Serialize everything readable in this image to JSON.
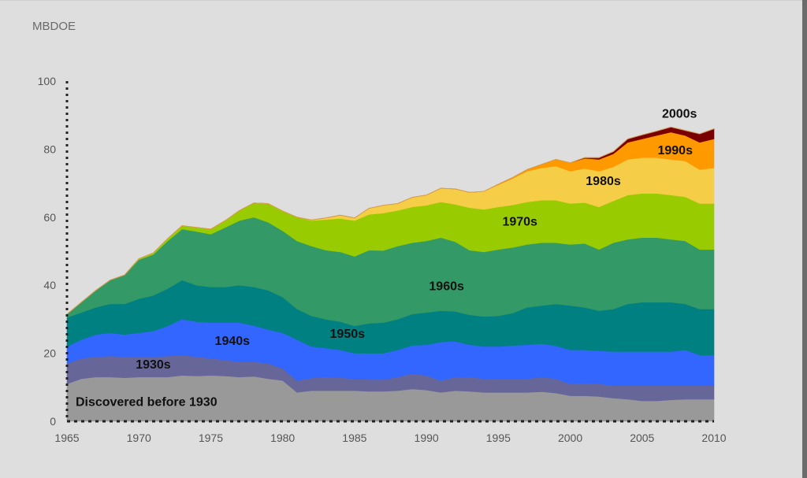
{
  "chart_data": {
    "type": "area",
    "stacked": true,
    "title": "",
    "ylabel": "MBDOE",
    "xlabel": "",
    "xlim": [
      1965,
      2010
    ],
    "ylim": [
      0,
      100
    ],
    "x_ticks": [
      1965,
      1970,
      1975,
      1980,
      1985,
      1990,
      1995,
      2000,
      2005,
      2010
    ],
    "y_ticks": [
      0,
      20,
      40,
      60,
      80,
      100
    ],
    "grid": false,
    "legend": "inline labels",
    "x": [
      1965,
      1966,
      1967,
      1968,
      1969,
      1970,
      1971,
      1972,
      1973,
      1974,
      1975,
      1976,
      1977,
      1978,
      1979,
      1980,
      1981,
      1982,
      1983,
      1984,
      1985,
      1986,
      1987,
      1988,
      1989,
      1990,
      1991,
      1992,
      1993,
      1994,
      1995,
      1996,
      1997,
      1998,
      1999,
      2000,
      2001,
      2002,
      2003,
      2004,
      2005,
      2006,
      2007,
      2008,
      2009,
      2010
    ],
    "series": [
      {
        "name": "Discovered before 1930",
        "color": "#999999",
        "label": "Discovered before 1930",
        "values": [
          11.0,
          12.5,
          13.0,
          13.0,
          12.8,
          13.0,
          13.0,
          13.0,
          13.5,
          13.3,
          13.5,
          13.3,
          13.0,
          13.2,
          12.5,
          12.0,
          8.5,
          9.0,
          9.0,
          9.0,
          9.0,
          8.8,
          8.8,
          9.0,
          9.5,
          9.2,
          8.5,
          9.0,
          8.8,
          8.5,
          8.5,
          8.5,
          8.5,
          8.7,
          8.3,
          7.5,
          7.5,
          7.3,
          6.8,
          6.5,
          6.0,
          6.0,
          6.3,
          6.5,
          6.5,
          6.5
        ]
      },
      {
        "name": "1930s",
        "color": "#666699",
        "label": "1930s",
        "values": [
          6.0,
          6.0,
          6.0,
          6.2,
          6.2,
          6.0,
          6.0,
          6.2,
          6.0,
          5.7,
          5.0,
          4.7,
          4.5,
          4.3,
          4.5,
          3.5,
          3.5,
          3.7,
          4.0,
          3.8,
          3.5,
          3.5,
          3.5,
          4.0,
          4.5,
          4.3,
          3.5,
          4.0,
          4.2,
          4.0,
          4.0,
          4.0,
          4.0,
          4.3,
          4.2,
          3.5,
          3.7,
          3.7,
          3.7,
          4.0,
          4.5,
          4.5,
          4.2,
          4.0,
          4.0,
          4.0
        ]
      },
      {
        "name": "1940s",
        "color": "#3366ff",
        "label": "1940s",
        "values": [
          5.0,
          5.5,
          6.5,
          6.8,
          6.5,
          7.0,
          7.5,
          8.8,
          10.5,
          10.3,
          10.5,
          11.0,
          11.5,
          10.6,
          10.0,
          10.5,
          12.0,
          9.3,
          8.5,
          8.2,
          7.5,
          7.7,
          7.7,
          8.0,
          8.3,
          9.0,
          11.3,
          10.5,
          9.5,
          9.5,
          9.5,
          9.8,
          10.0,
          9.8,
          9.7,
          10.0,
          9.8,
          9.7,
          10.0,
          10.0,
          10.0,
          10.0,
          10.0,
          10.5,
          9.0,
          9.0
        ]
      },
      {
        "name": "1950s",
        "color": "#008080",
        "label": "1950s",
        "values": [
          8.5,
          8.0,
          8.0,
          8.5,
          9.0,
          10.0,
          10.5,
          11.0,
          11.5,
          10.7,
          10.5,
          10.5,
          11.0,
          11.4,
          11.5,
          10.5,
          9.0,
          9.0,
          8.5,
          8.3,
          8.0,
          8.8,
          9.0,
          9.0,
          9.2,
          9.5,
          9.2,
          8.8,
          8.8,
          8.8,
          9.0,
          9.5,
          11.0,
          11.2,
          12.3,
          13.0,
          12.5,
          11.8,
          12.5,
          14.0,
          14.5,
          14.5,
          14.5,
          13.5,
          13.5,
          13.5
        ]
      },
      {
        "name": "1960s",
        "color": "#339966",
        "label": "1960s",
        "values": [
          1.0,
          3.0,
          5.0,
          7.0,
          8.5,
          11.5,
          12.0,
          14.0,
          15.0,
          15.8,
          15.5,
          17.5,
          19.0,
          20.5,
          20.0,
          19.5,
          20.0,
          20.5,
          20.3,
          20.5,
          20.5,
          21.5,
          21.2,
          21.5,
          21.0,
          21.0,
          21.5,
          20.5,
          19.0,
          19.0,
          19.5,
          19.3,
          18.5,
          18.5,
          18.0,
          18.0,
          18.8,
          18.0,
          19.5,
          19.0,
          19.0,
          19.0,
          18.5,
          18.5,
          17.5,
          17.5
        ]
      },
      {
        "name": "1970s",
        "color": "#99cc00",
        "label": "1970s",
        "values": [
          0.0,
          0.0,
          0.0,
          0.0,
          0.0,
          0.3,
          0.5,
          0.7,
          1.0,
          1.2,
          1.5,
          2.0,
          3.0,
          4.2,
          5.5,
          5.8,
          7.0,
          7.5,
          9.0,
          9.8,
          10.5,
          10.5,
          11.0,
          10.5,
          10.5,
          10.5,
          10.5,
          11.0,
          12.5,
          12.5,
          12.5,
          12.5,
          12.5,
          12.5,
          12.5,
          12.0,
          12.0,
          12.5,
          12.3,
          13.0,
          13.0,
          13.0,
          13.0,
          13.0,
          13.5,
          13.5
        ]
      },
      {
        "name": "1980s",
        "color": "#f5cd47",
        "label": "1980s",
        "values": [
          0,
          0,
          0,
          0,
          0,
          0,
          0,
          0,
          0,
          0,
          0,
          0,
          0,
          0,
          0,
          0,
          0,
          0.2,
          0.5,
          1.0,
          0.8,
          1.8,
          2.3,
          2.0,
          2.8,
          3.0,
          4.0,
          4.5,
          4.5,
          5.3,
          6.5,
          7.8,
          9.0,
          9.5,
          10.0,
          9.5,
          10.0,
          10.5,
          10.0,
          10.5,
          10.5,
          10.5,
          10.5,
          10.5,
          10.0,
          10.5
        ]
      },
      {
        "name": "1990s",
        "color": "#ff9900",
        "label": "1990s",
        "values": [
          0,
          0,
          0,
          0,
          0,
          0,
          0,
          0,
          0,
          0,
          0,
          0,
          0,
          0,
          0,
          0,
          0,
          0,
          0,
          0,
          0,
          0,
          0,
          0,
          0,
          0,
          0,
          0,
          0,
          0,
          0.2,
          0.3,
          0.5,
          1.0,
          2.0,
          2.5,
          3.0,
          3.5,
          3.8,
          5.0,
          5.5,
          6.5,
          8.0,
          7.5,
          8.0,
          8.5
        ]
      },
      {
        "name": "2000s",
        "color": "#7a0000",
        "label": "2000s",
        "values": [
          0,
          0,
          0,
          0,
          0,
          0,
          0,
          0,
          0,
          0,
          0,
          0,
          0,
          0,
          0,
          0,
          0,
          0,
          0,
          0,
          0,
          0,
          0,
          0,
          0,
          0,
          0,
          0,
          0,
          0,
          0,
          0,
          0,
          0,
          0,
          0,
          0.2,
          0.5,
          0.7,
          1.0,
          1.2,
          1.3,
          1.5,
          1.5,
          2.5,
          3.0
        ]
      }
    ],
    "label_positions_data": [
      {
        "series": "Discovered before 1930",
        "x": 1965.6,
        "y": 4.5,
        "anchor": "start"
      },
      {
        "series": "1930s",
        "x": 1971,
        "y": 15.5,
        "anchor": "middle"
      },
      {
        "series": "1940s",
        "x": 1976.5,
        "y": 22.5,
        "anchor": "middle"
      },
      {
        "series": "1950s",
        "x": 1984.5,
        "y": 24.5,
        "anchor": "middle"
      },
      {
        "series": "1960s",
        "x": 1991.4,
        "y": 38.5,
        "anchor": "middle"
      },
      {
        "series": "1970s",
        "x": 1996.5,
        "y": 57.5,
        "anchor": "middle"
      },
      {
        "series": "1980s",
        "x": 2002.3,
        "y": 69.5,
        "anchor": "middle"
      },
      {
        "series": "1990s",
        "x": 2007.3,
        "y": 78.5,
        "anchor": "middle"
      },
      {
        "series": "2000s",
        "x": 2007.6,
        "y": 89.2,
        "anchor": "middle"
      }
    ]
  }
}
